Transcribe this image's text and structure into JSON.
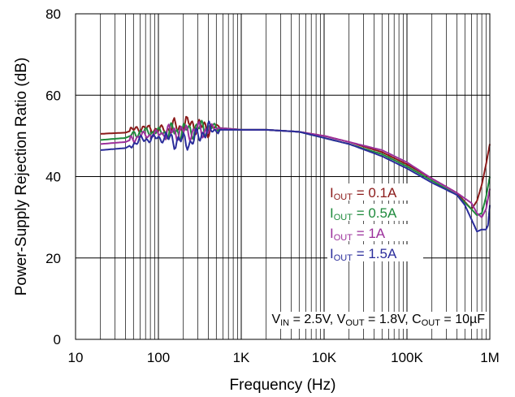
{
  "chart_data": {
    "type": "line",
    "title": "",
    "xlabel": "Frequency (Hz)",
    "ylabel": "Power-Supply Rejection Ratio (dB)",
    "xscale": "log",
    "xlim": [
      10,
      1000000
    ],
    "ylim": [
      0,
      80
    ],
    "grid": true,
    "x_ticks": [
      {
        "value": 10,
        "label": "10"
      },
      {
        "value": 100,
        "label": "100"
      },
      {
        "value": 1000,
        "label": "1K"
      },
      {
        "value": 10000,
        "label": "10K"
      },
      {
        "value": 100000,
        "label": "100K"
      },
      {
        "value": 1000000,
        "label": "1M"
      }
    ],
    "y_ticks": [
      {
        "value": 0,
        "label": "0"
      },
      {
        "value": 20,
        "label": "20"
      },
      {
        "value": 40,
        "label": "40"
      },
      {
        "value": 60,
        "label": "60"
      },
      {
        "value": 80,
        "label": "80"
      }
    ],
    "legend_position": "right",
    "series": [
      {
        "name_main": "I",
        "name_sub": "OUT",
        "name_rest": " = 0.1A",
        "color": "#8B1A1A",
        "points": [
          [
            20,
            50.5
          ],
          [
            40,
            50.8
          ],
          [
            60,
            52
          ],
          [
            100,
            51.5
          ],
          [
            150,
            52
          ],
          [
            250,
            53
          ],
          [
            350,
            52
          ],
          [
            500,
            52
          ],
          [
            1000,
            51.5
          ],
          [
            2000,
            51.5
          ],
          [
            5000,
            51
          ],
          [
            10000,
            50
          ],
          [
            20000,
            48.5
          ],
          [
            50000,
            46
          ],
          [
            100000,
            43
          ],
          [
            200000,
            39.5
          ],
          [
            400000,
            36
          ],
          [
            600000,
            32
          ],
          [
            700000,
            34
          ],
          [
            800000,
            38
          ],
          [
            900000,
            43
          ],
          [
            1000000,
            48
          ]
        ]
      },
      {
        "name_main": "I",
        "name_sub": "OUT",
        "name_rest": " = 0.5A",
        "color": "#1E8A3C",
        "points": [
          [
            20,
            49
          ],
          [
            40,
            49.5
          ],
          [
            60,
            51
          ],
          [
            100,
            51
          ],
          [
            150,
            51
          ],
          [
            250,
            51.5
          ],
          [
            350,
            52
          ],
          [
            500,
            52
          ],
          [
            1000,
            51.5
          ],
          [
            2000,
            51.5
          ],
          [
            5000,
            51
          ],
          [
            10000,
            49.5
          ],
          [
            20000,
            48
          ],
          [
            50000,
            45.5
          ],
          [
            100000,
            42.5
          ],
          [
            200000,
            39
          ],
          [
            400000,
            35.5
          ],
          [
            600000,
            32
          ],
          [
            700000,
            30.5
          ],
          [
            800000,
            31
          ],
          [
            900000,
            35
          ],
          [
            1000000,
            40
          ]
        ]
      },
      {
        "name_main": "I",
        "name_sub": "OUT",
        "name_rest": " = 1A",
        "color": "#9B2F9B",
        "points": [
          [
            20,
            48
          ],
          [
            40,
            48.5
          ],
          [
            60,
            50
          ],
          [
            100,
            50.5
          ],
          [
            150,
            51
          ],
          [
            250,
            51
          ],
          [
            350,
            51.5
          ],
          [
            500,
            52
          ],
          [
            1000,
            51.5
          ],
          [
            2000,
            51.5
          ],
          [
            5000,
            51
          ],
          [
            10000,
            50
          ],
          [
            20000,
            48.5
          ],
          [
            50000,
            46.5
          ],
          [
            100000,
            43.5
          ],
          [
            200000,
            39.5
          ],
          [
            400000,
            36
          ],
          [
            600000,
            33.5
          ],
          [
            700000,
            31
          ],
          [
            800000,
            30
          ],
          [
            900000,
            32
          ],
          [
            1000000,
            37
          ]
        ]
      },
      {
        "name_main": "I",
        "name_sub": "OUT",
        "name_rest": " = 1.5A",
        "color": "#2B2D9B",
        "points": [
          [
            20,
            46.5
          ],
          [
            40,
            47
          ],
          [
            60,
            49
          ],
          [
            100,
            49.5
          ],
          [
            150,
            49
          ],
          [
            250,
            48.5
          ],
          [
            350,
            51
          ],
          [
            500,
            51.5
          ],
          [
            1000,
            51.5
          ],
          [
            2000,
            51.5
          ],
          [
            5000,
            51
          ],
          [
            10000,
            49.5
          ],
          [
            20000,
            48
          ],
          [
            50000,
            45
          ],
          [
            100000,
            42
          ],
          [
            200000,
            38.5
          ],
          [
            400000,
            35.5
          ],
          [
            500000,
            33
          ],
          [
            600000,
            29.5
          ],
          [
            700000,
            26.5
          ],
          [
            800000,
            27
          ],
          [
            900000,
            27
          ],
          [
            950000,
            28
          ],
          [
            1000000,
            33
          ]
        ]
      }
    ],
    "annotation": {
      "parts": [
        {
          "t": "V"
        },
        {
          "t": "IN",
          "sub": true
        },
        {
          "t": " = 2.5V, V"
        },
        {
          "t": "OUT",
          "sub": true
        },
        {
          "t": " = 1.8V, C"
        },
        {
          "t": "OUT",
          "sub": true
        },
        {
          "t": " = 10µF"
        }
      ]
    }
  }
}
